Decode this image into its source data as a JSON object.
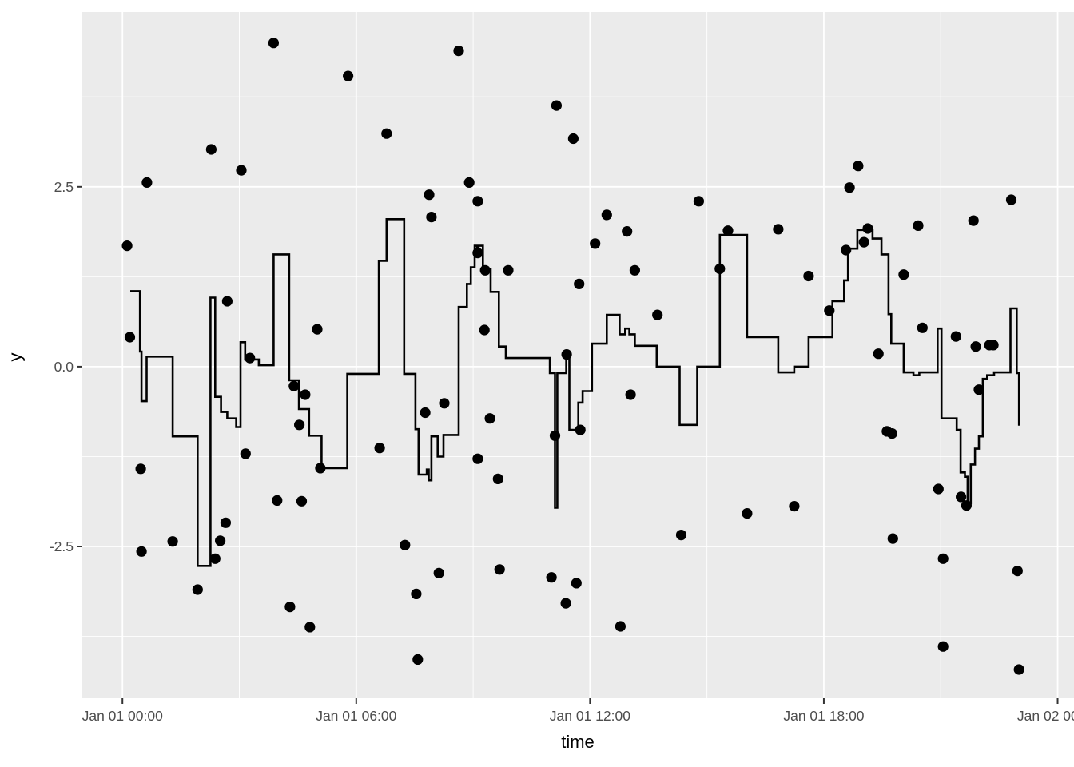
{
  "figure": {
    "background": "#FFFFFF",
    "panel_background": "#EBEBEB",
    "major_grid_color": "#FFFFFF",
    "minor_grid_color": "#FFFFFF",
    "tick_mark_color": "#333333",
    "tick_label_color": "#4D4D4D",
    "axis_title_color": "#000000",
    "line_color": "#000000",
    "point_color": "#000000"
  },
  "chart_data": {
    "type": "line",
    "subtype": "geom_step with geom_point scatter",
    "title": "",
    "xlabel": "time",
    "ylabel": "y",
    "x_axis": {
      "tick_hours": [
        0,
        6,
        12,
        18,
        24
      ],
      "tick_labels": [
        "Jan 01 00:00",
        "Jan 01 06:00",
        "Jan 01 12:00",
        "Jan 01 18:00",
        "Jan 02 00:00"
      ],
      "minor_tick_hours": [
        3,
        9,
        15,
        21
      ],
      "xlim_hours": [
        -1.03,
        24.42
      ]
    },
    "y_axis": {
      "ticks": [
        -2.5,
        0.0,
        2.5
      ],
      "tick_labels": [
        "-2.5",
        "0.0",
        "2.5"
      ],
      "minor_ticks": [
        -3.75,
        -1.25,
        1.25,
        3.75
      ],
      "ylim": [
        -4.61,
        4.93
      ]
    },
    "grid": "on",
    "legend": "none",
    "step_series": {
      "name": "step-line",
      "points_hour_value": [
        [
          0.2,
          1.05
        ],
        [
          0.45,
          0.21
        ],
        [
          0.49,
          -0.48
        ],
        [
          0.62,
          0.14
        ],
        [
          1.29,
          -0.97
        ],
        [
          1.93,
          -2.77
        ],
        [
          2.26,
          0.96
        ],
        [
          2.38,
          -0.42
        ],
        [
          2.53,
          -0.63
        ],
        [
          2.69,
          -0.72
        ],
        [
          2.92,
          -0.84
        ],
        [
          3.03,
          0.34
        ],
        [
          3.15,
          0.1
        ],
        [
          3.5,
          0.02
        ],
        [
          3.88,
          1.56
        ],
        [
          4.28,
          -0.19
        ],
        [
          4.53,
          -0.59
        ],
        [
          4.79,
          -0.96
        ],
        [
          5.11,
          -1.41
        ],
        [
          5.77,
          -0.1
        ],
        [
          6.58,
          1.47
        ],
        [
          6.78,
          2.05
        ],
        [
          7.23,
          -0.1
        ],
        [
          7.52,
          -0.87
        ],
        [
          7.6,
          -1.5
        ],
        [
          7.81,
          -1.43
        ],
        [
          7.86,
          -1.58
        ],
        [
          7.93,
          -0.97
        ],
        [
          8.09,
          -1.25
        ],
        [
          8.24,
          -0.95
        ],
        [
          8.63,
          0.83
        ],
        [
          8.84,
          1.15
        ],
        [
          8.94,
          1.38
        ],
        [
          9.04,
          1.68
        ],
        [
          9.1,
          1.61
        ],
        [
          9.14,
          1.68
        ],
        [
          9.25,
          1.36
        ],
        [
          9.45,
          1.04
        ],
        [
          9.66,
          0.28
        ],
        [
          9.84,
          0.12
        ],
        [
          10.97,
          -0.09
        ],
        [
          11.1,
          -1.96
        ],
        [
          11.16,
          -0.09
        ],
        [
          11.39,
          0.2
        ],
        [
          11.47,
          -0.88
        ],
        [
          11.7,
          -0.5
        ],
        [
          11.81,
          -0.34
        ],
        [
          12.05,
          0.32
        ],
        [
          12.43,
          0.72
        ],
        [
          12.76,
          0.45
        ],
        [
          12.9,
          0.53
        ],
        [
          13.01,
          0.45
        ],
        [
          13.15,
          0.29
        ],
        [
          13.71,
          0.0
        ],
        [
          14.3,
          -0.81
        ],
        [
          14.75,
          0.0
        ],
        [
          15.33,
          1.83
        ],
        [
          16.03,
          0.41
        ],
        [
          16.83,
          -0.08
        ],
        [
          17.24,
          0.0
        ],
        [
          17.61,
          0.41
        ],
        [
          18.22,
          0.91
        ],
        [
          18.52,
          1.2
        ],
        [
          18.62,
          1.64
        ],
        [
          18.86,
          1.9
        ],
        [
          19.25,
          1.78
        ],
        [
          19.48,
          1.56
        ],
        [
          19.66,
          0.73
        ],
        [
          19.73,
          0.32
        ],
        [
          20.05,
          -0.08
        ],
        [
          20.3,
          -0.12
        ],
        [
          20.45,
          -0.08
        ],
        [
          20.92,
          0.53
        ],
        [
          21.02,
          -0.72
        ],
        [
          21.41,
          -0.88
        ],
        [
          21.51,
          -1.47
        ],
        [
          21.62,
          -1.53
        ],
        [
          21.69,
          -1.9
        ],
        [
          21.77,
          -1.36
        ],
        [
          21.88,
          -1.14
        ],
        [
          21.98,
          -0.97
        ],
        [
          22.08,
          -0.17
        ],
        [
          22.19,
          -0.12
        ],
        [
          22.37,
          -0.08
        ],
        [
          22.79,
          0.81
        ],
        [
          22.95,
          -0.09
        ],
        [
          23.01,
          -0.82
        ]
      ]
    },
    "scatter_series": {
      "name": "points",
      "radius_px": 6.6,
      "points_hour_value": [
        [
          0.12,
          1.68
        ],
        [
          0.19,
          0.41
        ],
        [
          0.47,
          -1.42
        ],
        [
          0.49,
          -2.57
        ],
        [
          0.63,
          2.56
        ],
        [
          1.29,
          -2.43
        ],
        [
          1.93,
          -3.1
        ],
        [
          2.28,
          3.02
        ],
        [
          2.38,
          -2.67
        ],
        [
          2.51,
          -2.42
        ],
        [
          2.65,
          -2.17
        ],
        [
          2.69,
          0.91
        ],
        [
          3.05,
          2.73
        ],
        [
          3.16,
          -1.21
        ],
        [
          3.27,
          0.12
        ],
        [
          3.88,
          4.5
        ],
        [
          3.97,
          -1.86
        ],
        [
          4.3,
          -3.34
        ],
        [
          4.4,
          -0.27
        ],
        [
          4.54,
          -0.81
        ],
        [
          4.6,
          -1.87
        ],
        [
          4.69,
          -0.39
        ],
        [
          4.81,
          -3.62
        ],
        [
          5.0,
          0.52
        ],
        [
          5.08,
          -1.41
        ],
        [
          5.79,
          4.04
        ],
        [
          6.6,
          -1.13
        ],
        [
          6.78,
          3.24
        ],
        [
          7.25,
          -2.48
        ],
        [
          7.54,
          -3.16
        ],
        [
          7.58,
          -4.07
        ],
        [
          7.77,
          -0.64
        ],
        [
          7.87,
          2.39
        ],
        [
          7.93,
          2.08
        ],
        [
          8.12,
          -2.87
        ],
        [
          8.26,
          -0.51
        ],
        [
          8.63,
          4.39
        ],
        [
          8.9,
          2.56
        ],
        [
          9.12,
          2.3
        ],
        [
          9.12,
          1.58
        ],
        [
          9.12,
          -1.28
        ],
        [
          9.29,
          0.51
        ],
        [
          9.31,
          1.34
        ],
        [
          9.43,
          -0.72
        ],
        [
          9.64,
          -1.56
        ],
        [
          9.68,
          -2.82
        ],
        [
          9.9,
          1.34
        ],
        [
          11.01,
          -2.93
        ],
        [
          11.1,
          -0.96
        ],
        [
          11.14,
          3.63
        ],
        [
          11.38,
          -3.29
        ],
        [
          11.4,
          0.17
        ],
        [
          11.57,
          3.17
        ],
        [
          11.65,
          -3.01
        ],
        [
          11.72,
          1.15
        ],
        [
          11.75,
          -0.88
        ],
        [
          12.13,
          1.71
        ],
        [
          12.43,
          2.11
        ],
        [
          12.78,
          -3.61
        ],
        [
          12.95,
          1.88
        ],
        [
          13.04,
          -0.39
        ],
        [
          13.15,
          1.34
        ],
        [
          13.73,
          0.72
        ],
        [
          14.34,
          -2.34
        ],
        [
          14.79,
          2.3
        ],
        [
          15.33,
          1.36
        ],
        [
          15.54,
          1.89
        ],
        [
          16.03,
          -2.04
        ],
        [
          16.83,
          1.91
        ],
        [
          17.24,
          -1.94
        ],
        [
          17.61,
          1.26
        ],
        [
          18.14,
          0.78
        ],
        [
          18.57,
          1.62
        ],
        [
          18.66,
          2.49
        ],
        [
          18.88,
          2.79
        ],
        [
          19.03,
          1.73
        ],
        [
          19.13,
          1.92
        ],
        [
          19.4,
          0.18
        ],
        [
          19.62,
          -0.9
        ],
        [
          19.75,
          -0.93
        ],
        [
          19.77,
          -2.39
        ],
        [
          20.05,
          1.28
        ],
        [
          20.42,
          1.96
        ],
        [
          20.53,
          0.54
        ],
        [
          20.94,
          -1.7
        ],
        [
          21.06,
          -2.67
        ],
        [
          21.06,
          -3.89
        ],
        [
          21.39,
          0.42
        ],
        [
          21.52,
          -1.81
        ],
        [
          21.66,
          -1.93
        ],
        [
          21.84,
          2.03
        ],
        [
          21.9,
          0.28
        ],
        [
          21.98,
          -0.32
        ],
        [
          22.25,
          0.3
        ],
        [
          22.35,
          0.3
        ],
        [
          22.81,
          2.32
        ],
        [
          22.97,
          -2.84
        ],
        [
          23.01,
          -4.21
        ]
      ]
    }
  }
}
